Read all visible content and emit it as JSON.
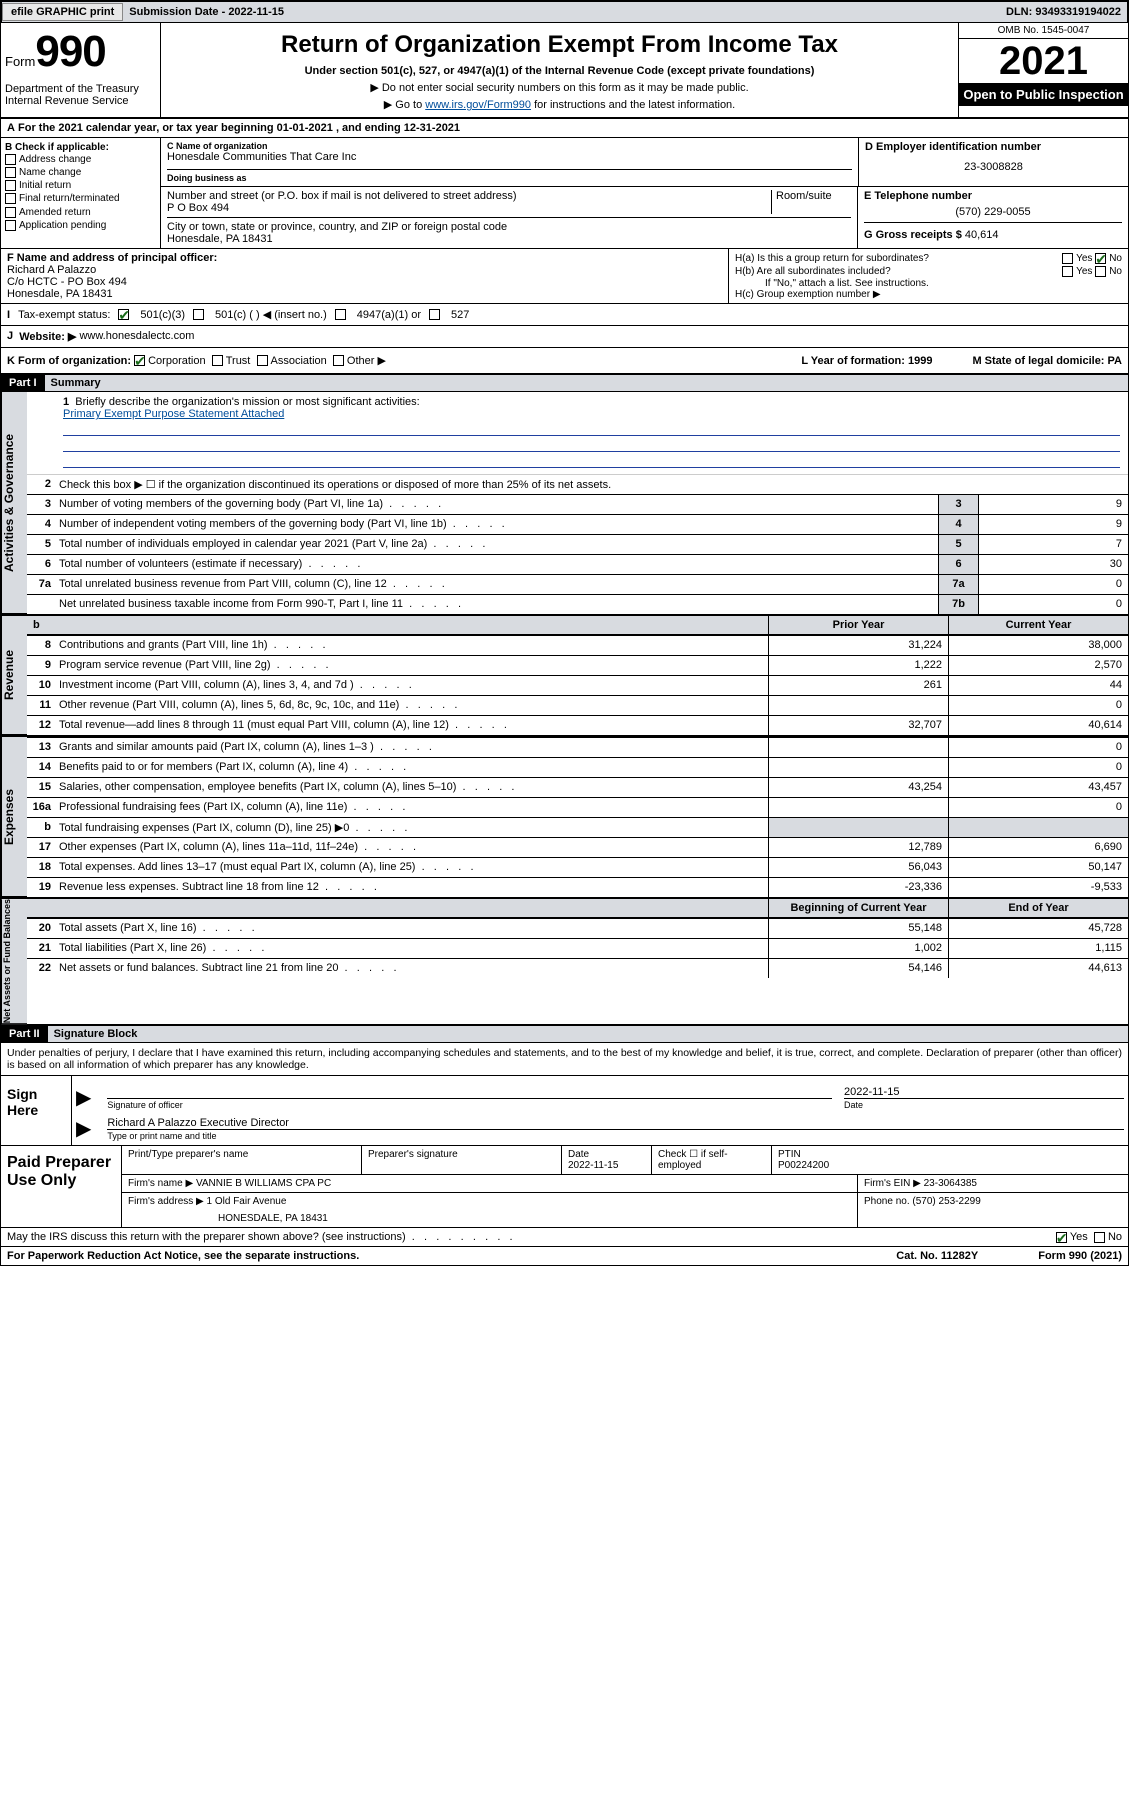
{
  "topbar": {
    "efile": "efile GRAPHIC print",
    "submission_label": "Submission Date - 2022-11-15",
    "dln": "DLN: 93493319194022"
  },
  "header": {
    "form_prefix": "Form",
    "form_number": "990",
    "title": "Return of Organization Exempt From Income Tax",
    "subtitle": "Under section 501(c), 527, or 4947(a)(1) of the Internal Revenue Code (except private foundations)",
    "note1": "▶ Do not enter social security numbers on this form as it may be made public.",
    "note2_pre": "▶ Go to ",
    "note2_link": "www.irs.gov/Form990",
    "note2_post": " for instructions and the latest information.",
    "dept": "Department of the Treasury\nInternal Revenue Service",
    "omb": "OMB No. 1545-0047",
    "year": "2021",
    "inspection": "Open to Public Inspection"
  },
  "period": "For the 2021 calendar year, or tax year beginning 01-01-2021   , and ending 12-31-2021",
  "b": {
    "label": "B Check if applicable:",
    "opts": [
      "Address change",
      "Name change",
      "Initial return",
      "Final return/terminated",
      "Amended return",
      "Application pending"
    ]
  },
  "c": {
    "name_label": "C Name of organization",
    "name": "Honesdale Communities That Care Inc",
    "dba_label": "Doing business as",
    "street_label": "Number and street (or P.O. box if mail is not delivered to street address)",
    "room_label": "Room/suite",
    "street": "P O Box 494",
    "city_label": "City or town, state or province, country, and ZIP or foreign postal code",
    "city": "Honesdale, PA  18431"
  },
  "d": {
    "label": "D Employer identification number",
    "value": "23-3008828"
  },
  "e": {
    "label": "E Telephone number",
    "value": "(570) 229-0055"
  },
  "g": {
    "label": "G Gross receipts $",
    "value": "40,614"
  },
  "f": {
    "label": "F Name and address of principal officer:",
    "name": "Richard A Palazzo",
    "addr1": "C/o HCTC - PO Box 494",
    "addr2": "Honesdale, PA  18431"
  },
  "h": {
    "a_label": "H(a)  Is this a group return for subordinates?",
    "a_yes": "Yes",
    "a_no": "No",
    "b_label": "H(b)  Are all subordinates included?",
    "b_yes": "Yes",
    "b_no": "No",
    "b_note": "If \"No,\" attach a list. See instructions.",
    "c_label": "H(c)  Group exemption number ▶"
  },
  "i": {
    "label": "Tax-exempt status:",
    "o1": "501(c)(3)",
    "o2": "501(c) (  ) ◀ (insert no.)",
    "o3": "4947(a)(1) or",
    "o4": "527"
  },
  "j": {
    "label": "Website: ▶",
    "value": "www.honesdalectc.com"
  },
  "k": {
    "label": "K Form of organization:",
    "o1": "Corporation",
    "o2": "Trust",
    "o3": "Association",
    "o4": "Other ▶",
    "l": "L Year of formation: 1999",
    "m": "M State of legal domicile: PA"
  },
  "part1": {
    "hdr": "Part I",
    "title": "Summary",
    "side1": "Activities & Governance",
    "side2": "Revenue",
    "side3": "Expenses",
    "side4": "Net Assets or Fund Balances",
    "l1": "Briefly describe the organization's mission or most significant activities:",
    "l1v": "Primary Exempt Purpose Statement Attached",
    "l2": "Check this box ▶ ☐  if the organization discontinued its operations or disposed of more than 25% of its net assets.",
    "prior": "Prior Year",
    "current": "Current Year",
    "begin": "Beginning of Current Year",
    "end": "End of Year",
    "rows_a": [
      {
        "n": "3",
        "t": "Number of voting members of the governing body (Part VI, line 1a)",
        "box": "3",
        "v": "9"
      },
      {
        "n": "4",
        "t": "Number of independent voting members of the governing body (Part VI, line 1b)",
        "box": "4",
        "v": "9"
      },
      {
        "n": "5",
        "t": "Total number of individuals employed in calendar year 2021 (Part V, line 2a)",
        "box": "5",
        "v": "7"
      },
      {
        "n": "6",
        "t": "Total number of volunteers (estimate if necessary)",
        "box": "6",
        "v": "30"
      },
      {
        "n": "7a",
        "t": "Total unrelated business revenue from Part VIII, column (C), line 12",
        "box": "7a",
        "v": "0"
      },
      {
        "n": "",
        "t": "Net unrelated business taxable income from Form 990-T, Part I, line 11",
        "box": "7b",
        "v": "0"
      }
    ],
    "rows_r": [
      {
        "n": "8",
        "t": "Contributions and grants (Part VIII, line 1h)",
        "p": "31,224",
        "c": "38,000"
      },
      {
        "n": "9",
        "t": "Program service revenue (Part VIII, line 2g)",
        "p": "1,222",
        "c": "2,570"
      },
      {
        "n": "10",
        "t": "Investment income (Part VIII, column (A), lines 3, 4, and 7d )",
        "p": "261",
        "c": "44"
      },
      {
        "n": "11",
        "t": "Other revenue (Part VIII, column (A), lines 5, 6d, 8c, 9c, 10c, and 11e)",
        "p": "",
        "c": "0"
      },
      {
        "n": "12",
        "t": "Total revenue—add lines 8 through 11 (must equal Part VIII, column (A), line 12)",
        "p": "32,707",
        "c": "40,614"
      }
    ],
    "rows_e": [
      {
        "n": "13",
        "t": "Grants and similar amounts paid (Part IX, column (A), lines 1–3 )",
        "p": "",
        "c": "0"
      },
      {
        "n": "14",
        "t": "Benefits paid to or for members (Part IX, column (A), line 4)",
        "p": "",
        "c": "0"
      },
      {
        "n": "15",
        "t": "Salaries, other compensation, employee benefits (Part IX, column (A), lines 5–10)",
        "p": "43,254",
        "c": "43,457"
      },
      {
        "n": "16a",
        "t": "Professional fundraising fees (Part IX, column (A), line 11e)",
        "p": "",
        "c": "0"
      },
      {
        "n": "b",
        "t": "Total fundraising expenses (Part IX, column (D), line 25) ▶0",
        "p": "shade",
        "c": "shade"
      },
      {
        "n": "17",
        "t": "Other expenses (Part IX, column (A), lines 11a–11d, 11f–24e)",
        "p": "12,789",
        "c": "6,690"
      },
      {
        "n": "18",
        "t": "Total expenses. Add lines 13–17 (must equal Part IX, column (A), line 25)",
        "p": "56,043",
        "c": "50,147"
      },
      {
        "n": "19",
        "t": "Revenue less expenses. Subtract line 18 from line 12",
        "p": "-23,336",
        "c": "-9,533"
      }
    ],
    "rows_n": [
      {
        "n": "20",
        "t": "Total assets (Part X, line 16)",
        "p": "55,148",
        "c": "45,728"
      },
      {
        "n": "21",
        "t": "Total liabilities (Part X, line 26)",
        "p": "1,002",
        "c": "1,115"
      },
      {
        "n": "22",
        "t": "Net assets or fund balances. Subtract line 21 from line 20",
        "p": "54,146",
        "c": "44,613"
      }
    ]
  },
  "part2": {
    "hdr": "Part II",
    "title": "Signature Block",
    "decl": "Under penalties of perjury, I declare that I have examined this return, including accompanying schedules and statements, and to the best of my knowledge and belief, it is true, correct, and complete. Declaration of preparer (other than officer) is based on all information of which preparer has any knowledge.",
    "sign_here": "Sign Here",
    "sig_officer": "Signature of officer",
    "sig_date_val": "2022-11-15",
    "sig_date": "Date",
    "officer_name": "Richard A Palazzo  Executive Director",
    "type_name": "Type or print name and title",
    "paid": "Paid Preparer Use Only",
    "pt_name_l": "Print/Type preparer's name",
    "pt_sig_l": "Preparer's signature",
    "pt_date_l": "Date",
    "pt_date_v": "2022-11-15",
    "pt_check_l": "Check ☐ if self-employed",
    "pt_ptin_l": "PTIN",
    "pt_ptin_v": "P00224200",
    "firm_name_l": "Firm's name    ▶",
    "firm_name_v": "VANNIE B WILLIAMS CPA PC",
    "firm_ein_l": "Firm's EIN ▶",
    "firm_ein_v": "23-3064385",
    "firm_addr_l": "Firm's address ▶",
    "firm_addr_v1": "1 Old Fair Avenue",
    "firm_addr_v2": "HONESDALE, PA  18431",
    "phone_l": "Phone no.",
    "phone_v": "(570) 253-2299",
    "may_irs": "May the IRS discuss this return with the preparer shown above? (see instructions)",
    "yes": "Yes",
    "no": "No"
  },
  "footer": {
    "pra": "For Paperwork Reduction Act Notice, see the separate instructions.",
    "cat": "Cat. No. 11282Y",
    "form": "Form 990 (2021)"
  },
  "colors": {
    "shade": "#d8dbe0",
    "link": "#004d9a",
    "check": "#1a6b1a"
  }
}
